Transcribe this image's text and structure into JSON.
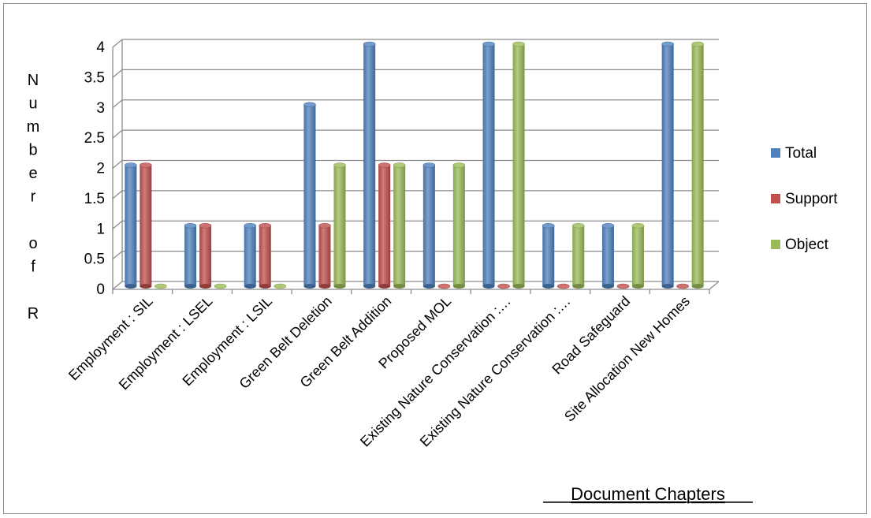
{
  "chart_data": {
    "type": "bar",
    "title": "",
    "xlabel": "Document Chapters",
    "ylabel": "Number of R",
    "ylim": [
      0,
      4
    ],
    "yticks": [
      "0",
      "0.5",
      "1",
      "1.5",
      "2",
      "2.5",
      "3",
      "3.5",
      "4"
    ],
    "grid": true,
    "legend_position": "right",
    "categories": [
      "Employment : SIL",
      "Employment : LSEL",
      "Employment : LSIL",
      "Green Belt Deletion",
      "Green Belt Addition",
      "Proposed MOL",
      "Existing Nature Conservation :…",
      "Existing Nature Conservation :…",
      "Road Safeguard",
      "Site Allocation New Homes"
    ],
    "series": [
      {
        "name": "Total",
        "color": "#4f81bd",
        "values": [
          2,
          1,
          1,
          3,
          4,
          2,
          4,
          1,
          1,
          4
        ]
      },
      {
        "name": "Support",
        "color": "#c0504d",
        "values": [
          2,
          1,
          1,
          1,
          2,
          0,
          0,
          0,
          0,
          0
        ]
      },
      {
        "name": "Object",
        "color": "#9bbb59",
        "values": [
          0,
          0,
          0,
          2,
          2,
          2,
          4,
          1,
          1,
          4
        ]
      }
    ]
  }
}
